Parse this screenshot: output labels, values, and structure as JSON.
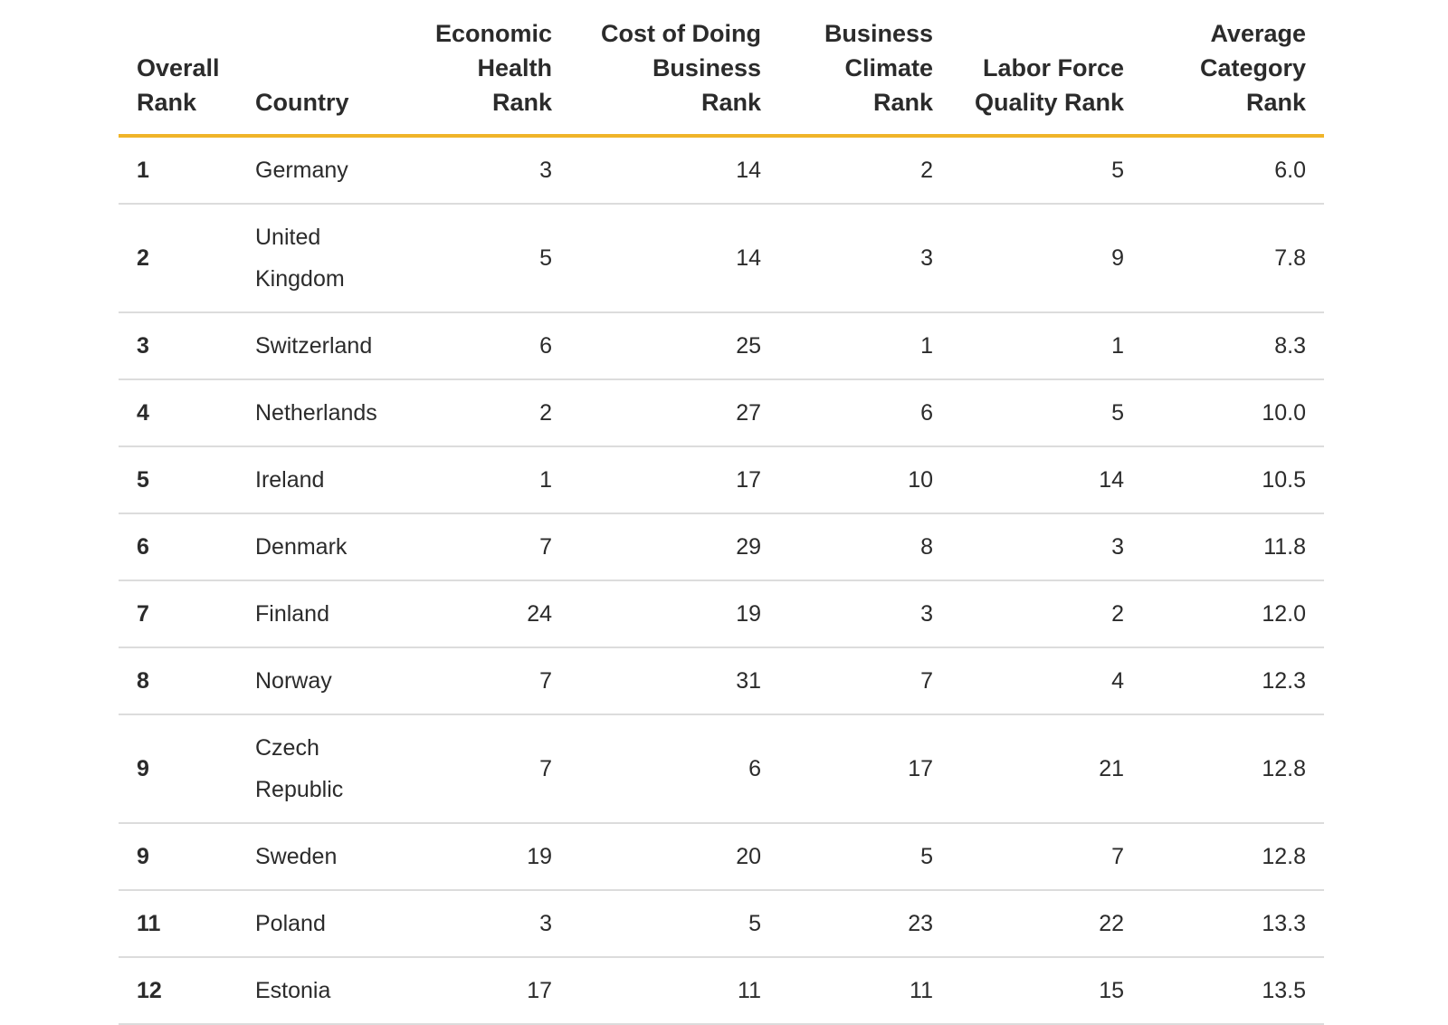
{
  "table": {
    "headers": {
      "overall_rank": "Overall Rank",
      "country": "Country",
      "economic_health_rank": "Economic Health Rank",
      "cost_of_doing_business_rank": "Cost of Doing Business Rank",
      "business_climate_rank": "Business Climate Rank",
      "labor_force_quality_rank": "Labor Force Quality Rank",
      "average_category_rank": "Average Category Rank"
    },
    "rows": [
      {
        "rank": "1",
        "country": "Germany",
        "econ": "3",
        "cost": "14",
        "climate": "2",
        "labor": "5",
        "avg": "6.0"
      },
      {
        "rank": "2",
        "country": "United Kingdom",
        "econ": "5",
        "cost": "14",
        "climate": "3",
        "labor": "9",
        "avg": "7.8"
      },
      {
        "rank": "3",
        "country": "Switzerland",
        "econ": "6",
        "cost": "25",
        "climate": "1",
        "labor": "1",
        "avg": "8.3"
      },
      {
        "rank": "4",
        "country": "Netherlands",
        "econ": "2",
        "cost": "27",
        "climate": "6",
        "labor": "5",
        "avg": "10.0"
      },
      {
        "rank": "5",
        "country": "Ireland",
        "econ": "1",
        "cost": "17",
        "climate": "10",
        "labor": "14",
        "avg": "10.5"
      },
      {
        "rank": "6",
        "country": "Denmark",
        "econ": "7",
        "cost": "29",
        "climate": "8",
        "labor": "3",
        "avg": "11.8"
      },
      {
        "rank": "7",
        "country": "Finland",
        "econ": "24",
        "cost": "19",
        "climate": "3",
        "labor": "2",
        "avg": "12.0"
      },
      {
        "rank": "8",
        "country": "Norway",
        "econ": "7",
        "cost": "31",
        "climate": "7",
        "labor": "4",
        "avg": "12.3"
      },
      {
        "rank": "9",
        "country": "Czech Republic",
        "econ": "7",
        "cost": "6",
        "climate": "17",
        "labor": "21",
        "avg": "12.8"
      },
      {
        "rank": "9",
        "country": "Sweden",
        "econ": "19",
        "cost": "20",
        "climate": "5",
        "labor": "7",
        "avg": "12.8"
      },
      {
        "rank": "11",
        "country": "Poland",
        "econ": "3",
        "cost": "5",
        "climate": "23",
        "labor": "22",
        "avg": "13.3"
      },
      {
        "rank": "12",
        "country": "Estonia",
        "econ": "17",
        "cost": "11",
        "climate": "11",
        "labor": "15",
        "avg": "13.5"
      }
    ]
  },
  "colors": {
    "header_rule": "#f0b429",
    "row_divider": "#dcdcdc",
    "text": "#2b2b2b"
  }
}
